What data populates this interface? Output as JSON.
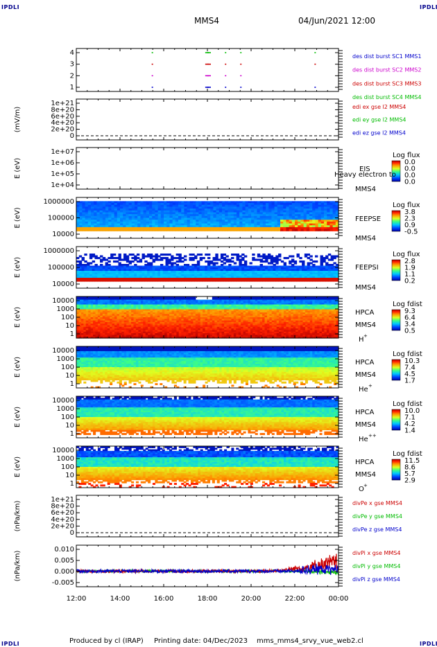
{
  "header": {
    "corner_label": "IPDLI",
    "spacecraft": "MMS4",
    "datetime": "04/Jun/2021 12:00"
  },
  "footer": {
    "produced_by": "Produced by cl (IRAP)",
    "printing_date": "Printing date: 04/Dec/2023",
    "filename": "mms_mms4_srvy_vue_web2.cl"
  },
  "time_axis": {
    "ticks": [
      "12:00",
      "14:00",
      "16:00",
      "18:00",
      "20:00",
      "22:00",
      "00:00"
    ]
  },
  "chart_data": [
    {
      "type": "scatter",
      "panel": "burst",
      "ylim": [
        0.5,
        4.5
      ],
      "yticks": [
        "4",
        "3",
        "2",
        "1"
      ],
      "legend": [
        {
          "label": "des dist burst SC1 MMS1",
          "color": "#0000cc"
        },
        {
          "label": "des dist burst SC2 MMS2",
          "color": "#cc00cc"
        },
        {
          "label": "des dist burst SC3 MMS3",
          "color": "#cc0000"
        },
        {
          "label": "des dist burst SC4 MMS4",
          "color": "#00bb00"
        }
      ],
      "marks_hours": [
        15.45,
        17.9,
        18.0,
        18.8,
        19.5,
        22.9
      ]
    },
    {
      "type": "line",
      "panel": "edi",
      "ylabel": "(mV/m)",
      "yticks": [
        "1e+21",
        "8e+20",
        "6e+20",
        "4e+20",
        "2e+20",
        "0"
      ],
      "legend": [
        {
          "label": "edi ex gse l2 MMS4",
          "color": "#cc0000"
        },
        {
          "label": "edi ey gse l2 MMS4",
          "color": "#00bb00"
        },
        {
          "label": "edi ez gse l2 MMS4",
          "color": "#0000cc"
        }
      ]
    },
    {
      "type": "heatmap",
      "panel": "eis",
      "ylabel": "E (eV)",
      "yticks": [
        "1e+07",
        "1e+06",
        "1e+05",
        "1e+04"
      ],
      "instrument": "EIS",
      "species_note": "Heavy electron to",
      "spacecraft": "MMS4",
      "cbar_title": "Log flux",
      "cbar_ticks": [
        "0.0",
        "0.0",
        "0.0",
        "0.0"
      ]
    },
    {
      "type": "heatmap",
      "panel": "feepse",
      "ylabel": "E (eV)",
      "yticks": [
        "1000000",
        "100000",
        "10000"
      ],
      "instrument": "FEEPSE",
      "spacecraft": "MMS4",
      "cbar_title": "Log flux",
      "cbar_ticks": [
        "3.8",
        "2.3",
        "0.9",
        "-0.5"
      ]
    },
    {
      "type": "heatmap",
      "panel": "feepsi",
      "ylabel": "E (eV)",
      "yticks": [
        "1000000",
        "100000",
        "10000"
      ],
      "instrument": "FEEPSI",
      "spacecraft": "MMS4",
      "cbar_title": "Log flux",
      "cbar_ticks": [
        "2.8",
        "1.9",
        "1.1",
        "0.2"
      ]
    },
    {
      "type": "heatmap",
      "panel": "hpca_h",
      "ylabel": "E (eV)",
      "yticks": [
        "10000",
        "1000",
        "100",
        "10",
        "1"
      ],
      "instrument": "HPCA",
      "spacecraft": "MMS4",
      "species": "H",
      "charge": "+",
      "cbar_title": "Log fdist",
      "cbar_ticks": [
        "9.3",
        "6.4",
        "3.4",
        "0.5"
      ]
    },
    {
      "type": "heatmap",
      "panel": "hpca_he",
      "ylabel": "E (eV)",
      "yticks": [
        "10000",
        "1000",
        "100",
        "10",
        "1"
      ],
      "instrument": "HPCA",
      "spacecraft": "MMS4",
      "species": "He",
      "charge": "+",
      "cbar_title": "Log fdist",
      "cbar_ticks": [
        "10.3",
        "7.4",
        "4.5",
        "1.7"
      ]
    },
    {
      "type": "heatmap",
      "panel": "hpca_he2",
      "ylabel": "E (eV)",
      "yticks": [
        "10000",
        "1000",
        "100",
        "10",
        "1"
      ],
      "instrument": "HPCA",
      "spacecraft": "MMS4",
      "species": "He",
      "charge": "++",
      "cbar_title": "Log fdist",
      "cbar_ticks": [
        "10.0",
        "7.1",
        "4.2",
        "1.4"
      ]
    },
    {
      "type": "heatmap",
      "panel": "hpca_o",
      "ylabel": "E (eV)",
      "yticks": [
        "10000",
        "1000",
        "100",
        "10",
        "1"
      ],
      "instrument": "HPCA",
      "spacecraft": "MMS4",
      "species": "O",
      "charge": "+",
      "cbar_title": "Log fdist",
      "cbar_ticks": [
        "11.5",
        "8.6",
        "5.7",
        "2.9"
      ]
    },
    {
      "type": "line",
      "panel": "divpe",
      "ylabel": "(nPa/km)",
      "yticks": [
        "1e+21",
        "8e+20",
        "6e+20",
        "4e+20",
        "2e+20",
        "0"
      ],
      "legend": [
        {
          "label": "divPe x gse MMS4",
          "color": "#cc0000"
        },
        {
          "label": "divPe y gse MMS4",
          "color": "#00bb00"
        },
        {
          "label": "divPe z gse MMS4",
          "color": "#0000cc"
        }
      ]
    },
    {
      "type": "line",
      "panel": "divpi",
      "ylabel": "(nPa/km)",
      "ylim": [
        -0.0075,
        0.0125
      ],
      "yticks": [
        "0.010",
        "0.005",
        "0.000",
        "-0.005"
      ],
      "legend": [
        {
          "label": "divPi x gse MMS4",
          "color": "#cc0000"
        },
        {
          "label": "divPi y gse MMS4",
          "color": "#00bb00"
        },
        {
          "label": "divPi z gse MMS4",
          "color": "#0000cc"
        }
      ]
    }
  ]
}
